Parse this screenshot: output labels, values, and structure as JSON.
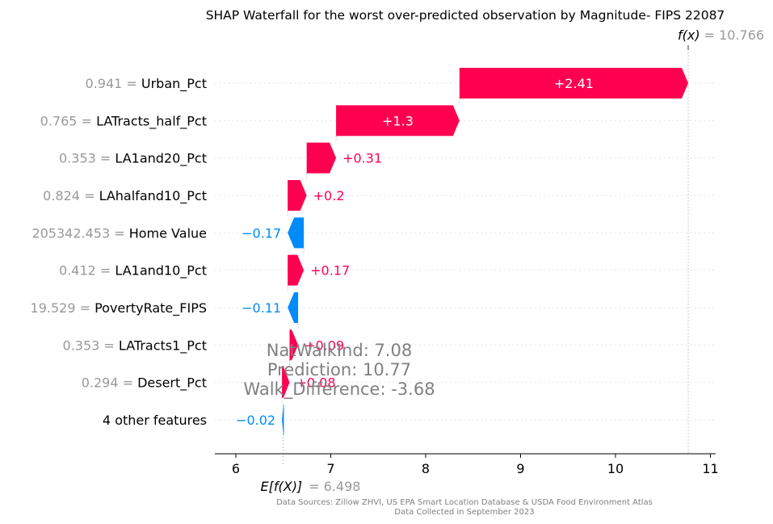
{
  "chart_data": {
    "type": "waterfall",
    "title": "SHAP Waterfall for the worst over-predicted observation by Magnitude- FIPS 22087",
    "base_value": 6.498,
    "base_label": "E[f(X)]",
    "base_value_text": "= 6.498",
    "final_value": 10.766,
    "final_label": "f(x)",
    "final_value_text": "= 10.766",
    "xlim": [
      5.78,
      11.05
    ],
    "xticks": [
      6,
      7,
      8,
      9,
      10,
      11
    ],
    "positive_color": "#ff0051",
    "negative_color": "#008bfb",
    "features": [
      {
        "value": "0.941",
        "name": "Urban_Pct",
        "shap": 2.41,
        "label": "+2.41"
      },
      {
        "value": "0.765",
        "name": "LATracts_half_Pct",
        "shap": 1.3,
        "label": "+1.3"
      },
      {
        "value": "0.353",
        "name": "LA1and20_Pct",
        "shap": 0.31,
        "label": "+0.31"
      },
      {
        "value": "0.824",
        "name": "LAhalfand10_Pct",
        "shap": 0.2,
        "label": "+0.2"
      },
      {
        "value": "205342.453",
        "name": "Home Value",
        "shap": -0.17,
        "label": "−0.17"
      },
      {
        "value": "0.412",
        "name": "LA1and10_Pct",
        "shap": 0.17,
        "label": "+0.17"
      },
      {
        "value": "19.529",
        "name": "PovertyRate_FIPS",
        "shap": -0.11,
        "label": "−0.11"
      },
      {
        "value": "0.353",
        "name": "LATracts1_Pct",
        "shap": 0.09,
        "label": "+0.09"
      },
      {
        "value": "0.294",
        "name": "Desert_Pct",
        "shap": 0.08,
        "label": "+0.08"
      },
      {
        "value": "",
        "name": "4 other features",
        "shap": -0.02,
        "label": "−0.02"
      }
    ],
    "annotations": [
      "NatWalkInd:  7.08",
      "Prediction:  10.77",
      "Walk_Difference:  -3.68"
    ],
    "footer": [
      "Data Sources: Zillow ZHVI, US EPA Smart Location Database & USDA Food Environment Atlas",
      "Data Collected in September 2023"
    ]
  }
}
